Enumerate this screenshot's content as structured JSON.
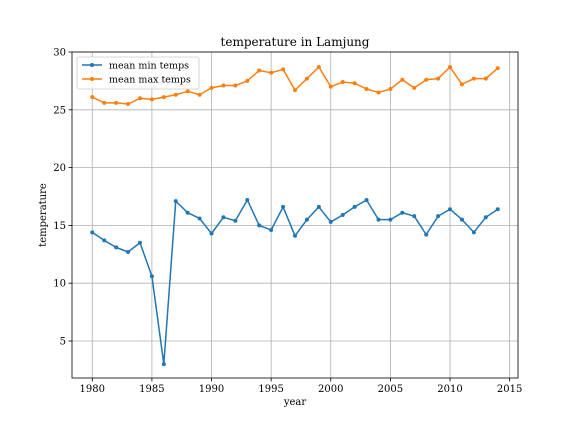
{
  "chart_data": {
    "type": "line",
    "title": "temperature in Lamjung",
    "xlabel": "year",
    "ylabel": "temperature",
    "xlim": [
      1978.3,
      2015.7
    ],
    "ylim": [
      1.8,
      30
    ],
    "xticks": [
      1980,
      1985,
      1990,
      1995,
      2000,
      2005,
      2010,
      2015
    ],
    "yticks": [
      5,
      10,
      15,
      20,
      25,
      30
    ],
    "grid": true,
    "legend_position": "upper left",
    "x": [
      1980,
      1981,
      1982,
      1983,
      1984,
      1985,
      1986,
      1987,
      1988,
      1989,
      1990,
      1991,
      1992,
      1993,
      1994,
      1995,
      1996,
      1997,
      1998,
      1999,
      2000,
      2001,
      2002,
      2003,
      2004,
      2005,
      2006,
      2007,
      2008,
      2009,
      2010,
      2011,
      2012,
      2013,
      2014
    ],
    "series": [
      {
        "name": "mean min temps",
        "color": "#1f77b4",
        "values": [
          14.4,
          13.7,
          13.1,
          12.7,
          13.5,
          10.6,
          3.0,
          17.1,
          16.1,
          15.6,
          14.3,
          15.7,
          15.4,
          17.2,
          15.0,
          14.6,
          16.6,
          14.1,
          15.5,
          16.6,
          15.3,
          15.9,
          16.6,
          17.2,
          15.5,
          15.5,
          16.1,
          15.8,
          14.2,
          15.8,
          16.4,
          15.5,
          14.4,
          15.7,
          16.4
        ]
      },
      {
        "name": "mean max temps",
        "color": "#ff7f0e",
        "values": [
          26.1,
          25.6,
          25.6,
          25.5,
          26.0,
          25.9,
          26.1,
          26.3,
          26.6,
          26.3,
          26.9,
          27.1,
          27.1,
          27.5,
          28.4,
          28.2,
          28.5,
          26.7,
          27.7,
          28.7,
          27.0,
          27.4,
          27.3,
          26.8,
          26.5,
          26.8,
          27.6,
          26.9,
          27.6,
          27.7,
          28.7,
          27.2,
          27.7,
          27.7,
          28.6
        ]
      }
    ]
  }
}
